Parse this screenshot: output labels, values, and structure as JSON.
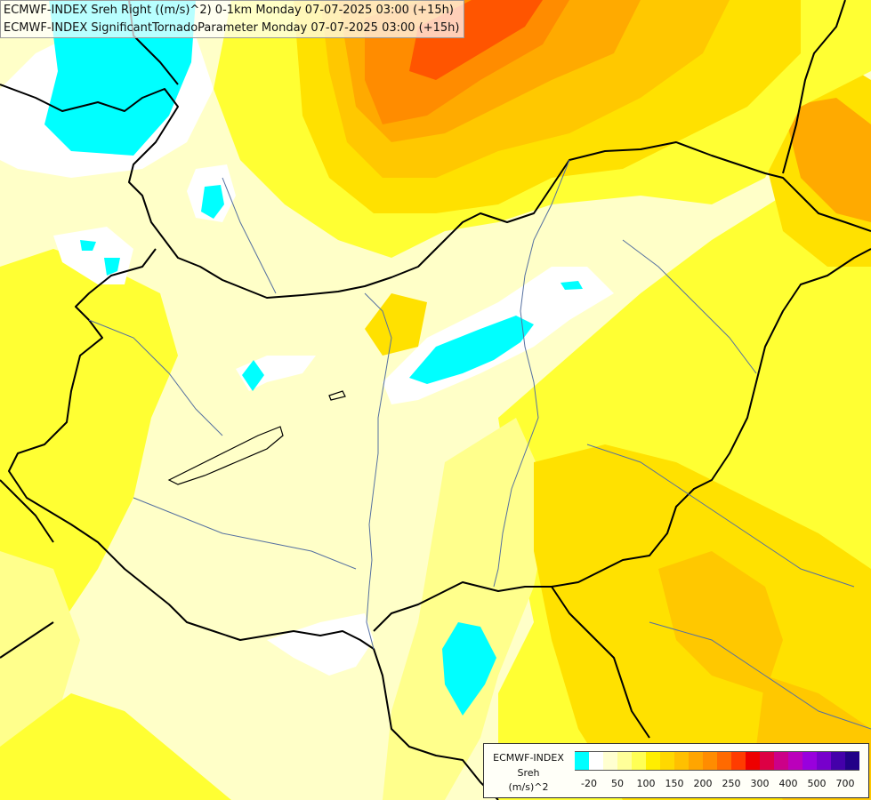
{
  "header": {
    "title_line_1": "ECMWF-INDEX Sreh Right ((m/s)^2) 0-1km Monday 07-07-2025 03:00 (+15h)",
    "title_line_2": "ECMWF-INDEX SignificantTornadoParameter Monday 07-07-2025 03:00 (+15h)"
  },
  "legend": {
    "model": "ECMWF-INDEX",
    "variable": "Sreh",
    "unit": "(m/s)^2",
    "colors": [
      "#00ffff",
      "#ffffff",
      "#ffffd0",
      "#ffff99",
      "#ffff55",
      "#ffee00",
      "#ffd800",
      "#ffc000",
      "#ffa500",
      "#ff8c00",
      "#ff6a00",
      "#ff3c00",
      "#ee0000",
      "#dd0044",
      "#cc0088",
      "#bb00bb",
      "#9900dd",
      "#7700cc",
      "#4400aa",
      "#220088"
    ],
    "ticks": [
      "-20",
      "50",
      "100",
      "150",
      "200",
      "250",
      "300",
      "400",
      "500",
      "700"
    ]
  },
  "map_colors": {
    "cyan": "#00ffff",
    "white": "#ffffff",
    "pale": "#ffffc8",
    "light_yellow": "#ffff8c",
    "yellow": "#ffff33",
    "gold": "#ffe100",
    "amber": "#ffc800",
    "orange": "#ffaa00",
    "dark_orange": "#ff8c00",
    "red_orange": "#ff5500",
    "border": "#000000",
    "river": "#5570a0"
  }
}
